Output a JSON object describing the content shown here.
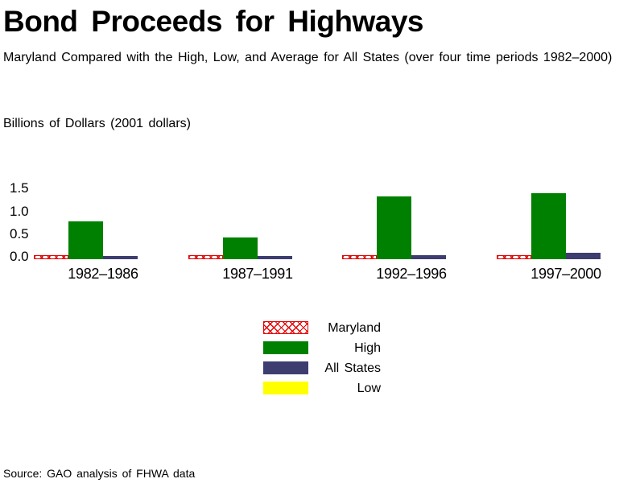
{
  "chart_data": {
    "type": "bar",
    "title": "Bond Proceeds for Highways",
    "subtitle": "Maryland Compared with the High, Low, and Average for All States (over four time periods 1982–2000)",
    "ylabel": "Billions of Dollars (2001 dollars)",
    "categories": [
      "1982–1986",
      "1987–1991",
      "1992–1996",
      "1997–2000"
    ],
    "series": [
      {
        "name": "Maryland",
        "values": [
          0.02,
          0.02,
          0.02,
          0.02
        ],
        "color": "#e60000",
        "fill": "red-crosshatch-on-white"
      },
      {
        "name": "High",
        "values": [
          0.82,
          0.47,
          1.37,
          1.44
        ],
        "color": "#008000",
        "fill": "solid"
      },
      {
        "name": "All States",
        "values": [
          0.07,
          0.07,
          0.09,
          0.14
        ],
        "color": "#3d3d70",
        "fill": "solid"
      },
      {
        "name": "Low",
        "values": [
          0,
          0,
          0,
          0
        ],
        "color": "#ffff00",
        "fill": "solid"
      }
    ],
    "yticks_display": [
      "1.5",
      "1.0",
      "0.5",
      "0.0"
    ],
    "ylim": [
      0,
      1.75
    ],
    "grid": false,
    "axis_lines": false,
    "legend_position": "below-center",
    "source": "Source: GAO analysis of FHWA data"
  }
}
